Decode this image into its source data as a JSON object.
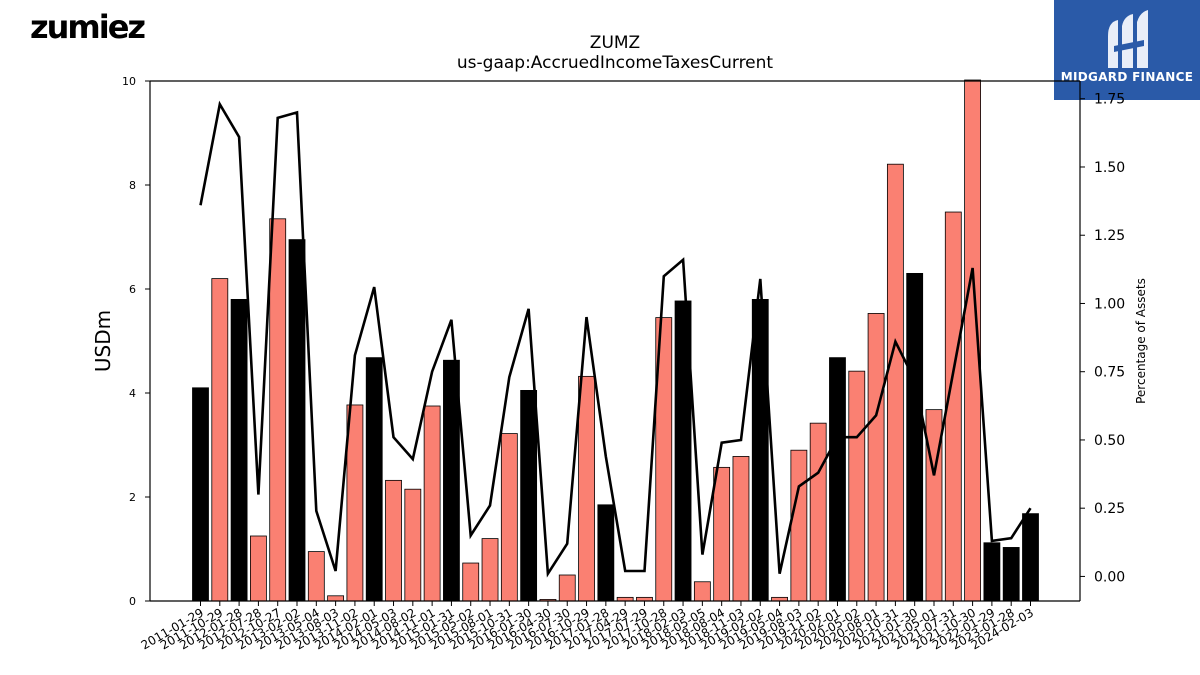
{
  "brand": {
    "logo_text": "zumiez",
    "badge_text": "MIDGARD FINANCE",
    "badge_color": "#2a5aa8"
  },
  "chart_data": {
    "type": "bar",
    "title": "ZUMZ",
    "subtitle": "us-gaap:AccruedIncomeTaxesCurrent",
    "ylabel": "USDm",
    "y2label": "Percentage of Assets",
    "ylim": [
      0,
      10
    ],
    "y2lim": [
      -0.09,
      1.815
    ],
    "yticks": [
      0,
      2,
      4,
      6,
      8,
      10
    ],
    "y2ticks": [
      "0.00",
      "0.25",
      "0.50",
      "0.75",
      "1.00",
      "1.25",
      "1.50",
      "1.75"
    ],
    "colors": {
      "q4_bar": "#000000",
      "other_bar": "#fa8072",
      "line": "#000000"
    },
    "categories": [
      "2011-01-29",
      "2011-10-29",
      "2012-01-28",
      "2012-07-28",
      "2012-10-27",
      "2013-02-02",
      "2013-05-04",
      "2013-08-03",
      "2013-11-02",
      "2014-02-01",
      "2014-05-03",
      "2014-08-02",
      "2014-11-01",
      "2015-01-31",
      "2015-05-02",
      "2015-08-01",
      "2015-10-31",
      "2016-01-30",
      "2016-04-30",
      "2016-07-30",
      "2016-10-29",
      "2017-01-28",
      "2017-04-29",
      "2017-07-29",
      "2017-10-28",
      "2018-02-03",
      "2018-05-05",
      "2018-08-04",
      "2018-11-03",
      "2019-02-02",
      "2019-05-04",
      "2019-08-03",
      "2019-11-02",
      "2020-02-01",
      "2020-05-02",
      "2020-08-01",
      "2020-10-31",
      "2021-01-30",
      "2021-05-01",
      "2021-07-31",
      "2021-10-30",
      "2022-01-29",
      "2023-01-28",
      "2024-02-03"
    ],
    "series": [
      {
        "values": [
          4.1,
          6.2,
          5.8,
          1.25,
          7.35,
          6.95,
          0.95,
          0.1,
          3.77,
          4.68,
          2.32,
          2.15,
          3.75,
          4.63,
          0.73,
          1.2,
          3.22,
          4.05,
          0.03,
          0.5,
          4.32,
          1.85,
          0.07,
          0.07,
          5.45,
          5.77,
          0.37,
          2.57,
          2.78,
          5.8,
          0.07,
          2.9,
          3.42,
          4.68,
          4.42,
          5.53,
          8.4,
          6.3,
          3.68,
          7.48,
          10.1,
          1.12,
          1.03,
          1.68
        ]
      },
      {
        "values": [
          1.36,
          1.73,
          1.61,
          0.3,
          1.68,
          1.7,
          0.24,
          0.02,
          0.81,
          1.06,
          0.51,
          0.43,
          0.75,
          0.94,
          0.15,
          0.26,
          0.73,
          0.98,
          0.01,
          0.12,
          0.95,
          0.44,
          0.02,
          0.02,
          1.1,
          1.16,
          0.08,
          0.49,
          0.5,
          1.09,
          0.01,
          0.33,
          0.38,
          0.51,
          0.51,
          0.59,
          0.86,
          0.72,
          0.37,
          0.75,
          1.13,
          0.13,
          0.14,
          0.25
        ]
      }
    ],
    "q4_flags": [
      1,
      0,
      1,
      0,
      0,
      1,
      0,
      0,
      0,
      1,
      0,
      0,
      0,
      1,
      0,
      0,
      0,
      1,
      0,
      0,
      0,
      1,
      0,
      0,
      0,
      1,
      0,
      0,
      0,
      1,
      0,
      0,
      0,
      1,
      0,
      0,
      0,
      1,
      0,
      0,
      0,
      1,
      1,
      1
    ],
    "grid": false,
    "legend": "none"
  }
}
